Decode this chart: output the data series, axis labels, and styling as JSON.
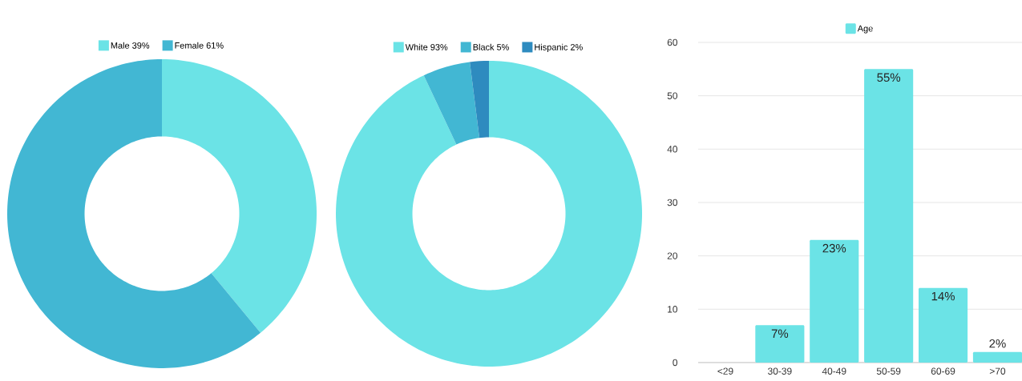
{
  "chart_data": [
    {
      "type": "donut",
      "categories": [
        "Male 39%",
        "Female 61%"
      ],
      "values": [
        39,
        61
      ],
      "colors": [
        "#6be3e6",
        "#42b7d3"
      ],
      "legend": "top"
    },
    {
      "type": "donut",
      "categories": [
        "White 93%",
        "Black 5%",
        "Hispanic 2%"
      ],
      "values": [
        93,
        5,
        2
      ],
      "colors": [
        "#6be3e6",
        "#42b7d3",
        "#2e8bbf"
      ],
      "legend": "top"
    },
    {
      "type": "bar",
      "categories": [
        "<29",
        "30-39",
        "40-49",
        "50-59",
        "60-69",
        ">70"
      ],
      "series": [
        {
          "name": "Age",
          "color": "#6be3e6",
          "values": [
            null,
            7,
            23,
            55,
            14,
            2
          ],
          "value_labels": [
            null,
            "7%",
            "23%",
            "55%",
            "14%",
            "2%"
          ]
        }
      ],
      "ylim": [
        0,
        60
      ],
      "yticks": [
        0,
        10,
        20,
        30,
        40,
        50,
        60
      ],
      "grid": "y",
      "legend": "top"
    }
  ]
}
